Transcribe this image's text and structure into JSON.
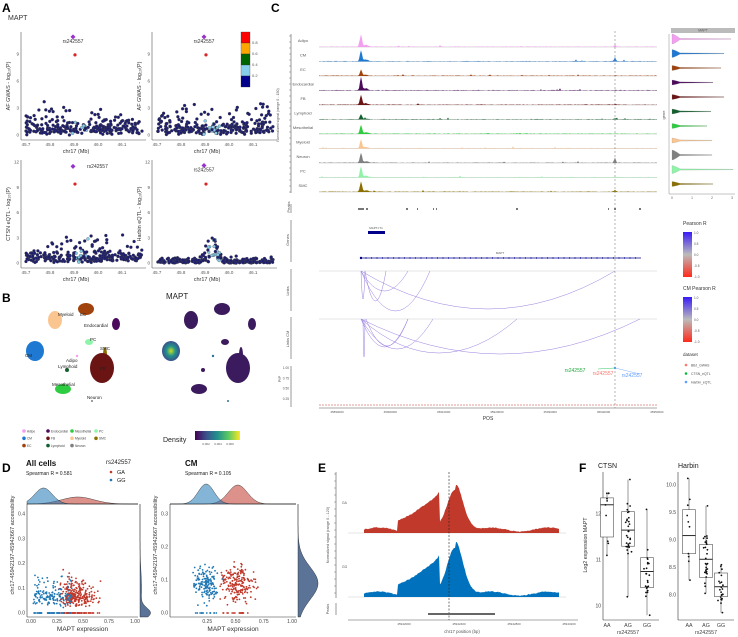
{
  "panels": {
    "a": "A",
    "b": "B",
    "c": "C",
    "d": "D",
    "e": "E",
    "f": "F"
  },
  "panelA": {
    "gene": "MAPT",
    "snp": "rs242557",
    "xlabel": "chr17 (Mb)",
    "xticks": [
      "45.7",
      "45.8",
      "45.9",
      "46.0",
      "46.1",
      "46.2"
    ],
    "plots": [
      {
        "ylabel": "AF GWAS  - log₁₀(P)",
        "yticks": [
          "0",
          "3",
          "6",
          "9"
        ]
      },
      {
        "ylabel": "AF GWAS  - log₁₀(P)",
        "yticks": [
          "0",
          "3",
          "6",
          "9"
        ]
      },
      {
        "ylabel": "CTSN eQTL  - log₁₀(P)",
        "yticks": [
          "0",
          "3",
          "6",
          "9",
          "12"
        ]
      },
      {
        "ylabel": "Harbin eQTL  - log₁₀(P)",
        "yticks": [
          "0",
          "3",
          "6",
          "9",
          "12"
        ]
      }
    ],
    "ld_legend_ticks": [
      "0.8",
      "0.6",
      "0.4",
      "0.2"
    ],
    "ld_colors": [
      "#ff0000",
      "#ffa500",
      "#006400",
      "#87ceeb",
      "#00008b"
    ]
  },
  "panelB": {
    "title": "MAPT",
    "clusters": [
      "Myeloid",
      "EC",
      "Endocardial",
      "PC",
      "SMC",
      "CM",
      "Adipo",
      "Lymphoid",
      "FB",
      "Mesothelial",
      "Neuron"
    ],
    "legend": [
      {
        "label": "Adipo",
        "color": "#f49ef0"
      },
      {
        "label": "Endocardial",
        "color": "#4b0a5c"
      },
      {
        "label": "Mesothelial",
        "color": "#2ecc40"
      },
      {
        "label": "PC",
        "color": "#8ef5a8"
      },
      {
        "label": "CM",
        "color": "#1f78d1"
      },
      {
        "label": "FB",
        "color": "#6b1414"
      },
      {
        "label": "Myeloid",
        "color": "#fbc58f"
      },
      {
        "label": "SMC",
        "color": "#8b7000"
      },
      {
        "label": "EC",
        "color": "#a0420c"
      },
      {
        "label": "Lymphoid",
        "color": "#13602e"
      },
      {
        "label": "Neuron",
        "color": "#808080"
      }
    ],
    "density_label": "Density",
    "density_ticks": [
      "0.002",
      "0.004",
      "0.006"
    ]
  },
  "panelC": {
    "ylabel": "Normalized signal (range 0 - 150)",
    "tracks": [
      "Adipo",
      "CM",
      "EC",
      "Endocardial",
      "FB",
      "Lymphoid",
      "Mesothelial",
      "Myeloid",
      "Neuron",
      "PC",
      "SMC"
    ],
    "violin_header": "MAPT",
    "violin_ylabel": "gene",
    "violin_xticks": [
      "0",
      "1",
      "2",
      "3"
    ],
    "peaks_label": "Peaks",
    "genes_label": "Genes",
    "gene_names": [
      "MAPT-IT1",
      "MAPT"
    ],
    "links_label": "Links",
    "links_cm_label": "Links CM",
    "pip_label": "PIP",
    "pip_ticks": [
      "1.00",
      "0.75",
      "0.50",
      "0.25"
    ],
    "xlabel": "POS",
    "xticks": [
      "45890000",
      "45900000",
      "45910000",
      "45920000",
      "45930000",
      "45940000",
      "45950000"
    ],
    "snp_labels": [
      {
        "text": "rs242557",
        "color": "#1fa83a"
      },
      {
        "text": "rs242557",
        "color": "#f8766d"
      },
      {
        "text": "rs242557",
        "color": "#619cff"
      }
    ],
    "pearson_title": "Pearson R",
    "cm_pearson_title": "CM Pearson R",
    "pearson_ticks": [
      "1.0",
      "0.5",
      "0.0",
      "-0.5",
      "-1.0"
    ],
    "dataset_title": "dataset",
    "datasets": [
      {
        "label": "BBJ_GWAS",
        "color": "#f8766d"
      },
      {
        "label": "CTSN_eQTL",
        "color": "#00ba38"
      },
      {
        "label": "Harbin_eQTL",
        "color": "#619cff"
      }
    ]
  },
  "panelD": {
    "legend_title": "rs242557",
    "genotypes": [
      {
        "label": "GA",
        "color": "#c0392b"
      },
      {
        "label": "GG",
        "color": "#1f77b4"
      }
    ],
    "ylabel": "chr17-45942197-45942667 accessibility",
    "xlabel": "MAPT expression",
    "plots": [
      {
        "title": "All cells",
        "stat": "Spearman R = 0.581",
        "yticks": [
          "0.0",
          "0.1",
          "0.2",
          "0.3",
          "0.4"
        ],
        "xticks": [
          "0.00",
          "0.25",
          "0.50",
          "0.75",
          "1.00"
        ]
      },
      {
        "title": "CM",
        "stat": "Spearman R = 0.105",
        "yticks": [
          "0.0",
          "0.1",
          "0.2",
          "0.3"
        ],
        "xticks": [
          "0.25",
          "0.50",
          "0.75",
          "1.00"
        ]
      }
    ]
  },
  "panelE": {
    "ylabel": "Normalized signal (range 0 - 120)",
    "tracks": [
      "GA",
      "GG"
    ],
    "track_colors": [
      "#c0392b",
      "#0072bd"
    ],
    "peaks_label": "Peaks",
    "xlabel": "chr17 position (bp)",
    "xticks": [
      "45942000",
      "45942400",
      "45942800",
      "45943200"
    ]
  },
  "panelF": {
    "ylabel": "Log2 expression MAPT",
    "xlabel": "rs242557",
    "genotypes": [
      "AA",
      "AG",
      "GG"
    ],
    "plots": [
      {
        "title": "CTSN",
        "yticks": [
          "10",
          "11",
          "12"
        ]
      },
      {
        "title": "Harbin",
        "yticks": [
          "8.0",
          "8.5",
          "9.0",
          "9.5",
          "10.0"
        ]
      }
    ]
  },
  "chart_data": [
    {
      "panel": "A",
      "type": "scatter",
      "title": "MAPT",
      "xlabel": "chr17 (Mb)",
      "xlim": [
        45.68,
        46.2
      ],
      "lead_snp": "rs242557",
      "lead_snp_position_mb": 45.94,
      "plots": [
        {
          "ylabel": "AF GWAS -log10(P)",
          "ylim": [
            0,
            11
          ],
          "lead_value": 10.9,
          "second_value": 8.9
        },
        {
          "ylabel": "AF GWAS -log10(P)",
          "ylim": [
            0,
            11
          ],
          "lead_value": 10.9,
          "second_value": 8.9
        },
        {
          "ylabel": "CTSN eQTL -log10(P)",
          "ylim": [
            0,
            12
          ],
          "lead_value": 11.5,
          "second_value": 9.4
        },
        {
          "ylabel": "Harbin eQTL -log10(P)",
          "ylim": [
            0,
            12
          ],
          "lead_value": 11.6,
          "second_value": 9.4
        }
      ]
    },
    {
      "panel": "C",
      "type": "area",
      "xlabel": "POS",
      "xlim": [
        45888000,
        45950000
      ],
      "snp_position": 45942300,
      "violin_max_expression": {
        "Adipo": 2.95,
        "CM": 2.6,
        "EC": 2.45,
        "Endocardial": 2.05,
        "FB": 2.6,
        "Lymphoid": 1.95,
        "Mesothelial": 1.75,
        "Myeloid": 2.0,
        "Neuron": 2.0,
        "PC": 3.05,
        "SMC": 2.05
      },
      "pip": {
        "BBJ_GWAS": 1.0,
        "CTSN_eQTL": 1.0,
        "Harbin_eQTL": 1.0
      }
    },
    {
      "panel": "D",
      "type": "scatter",
      "plots": [
        {
          "title": "All cells",
          "spearman_r": 0.581,
          "xlim": [
            0,
            1
          ],
          "ylim": [
            0,
            0.42
          ]
        },
        {
          "title": "CM",
          "spearman_r": 0.105,
          "xlim": [
            0.05,
            1
          ],
          "ylim": [
            0,
            0.32
          ]
        }
      ]
    },
    {
      "panel": "E",
      "type": "area",
      "xlabel": "chr17 position (bp)",
      "xlim": [
        45941800,
        45943250
      ],
      "peak_range": [
        45942197,
        45942667
      ]
    },
    {
      "panel": "F",
      "type": "box",
      "xlabel": "rs242557",
      "ylabel": "Log2 expression MAPT",
      "plots": [
        {
          "title": "CTSN",
          "ylim": [
            9.7,
            12.9
          ],
          "boxes": [
            {
              "genotype": "AA",
              "min": 11.1,
              "q1": 11.5,
              "median": 12.2,
              "q3": 12.35,
              "max": 12.45
            },
            {
              "genotype": "AG",
              "min": 10.2,
              "q1": 11.3,
              "median": 11.65,
              "q3": 12.05,
              "max": 12.75
            },
            {
              "genotype": "GG",
              "min": 9.8,
              "q1": 10.4,
              "median": 10.75,
              "q3": 11.05,
              "max": 12.1
            }
          ]
        },
        {
          "title": "Harbin",
          "ylim": [
            7.6,
            10.2
          ],
          "boxes": [
            {
              "genotype": "AA",
              "min": 8.27,
              "q1": 8.75,
              "median": 9.08,
              "q3": 9.55,
              "max": 10.12
            },
            {
              "genotype": "AG",
              "min": 8.03,
              "q1": 8.32,
              "median": 8.65,
              "q3": 8.92,
              "max": 9.62
            },
            {
              "genotype": "GG",
              "min": 7.68,
              "q1": 7.97,
              "median": 8.15,
              "q3": 8.4,
              "max": 8.55
            }
          ]
        }
      ]
    }
  ]
}
